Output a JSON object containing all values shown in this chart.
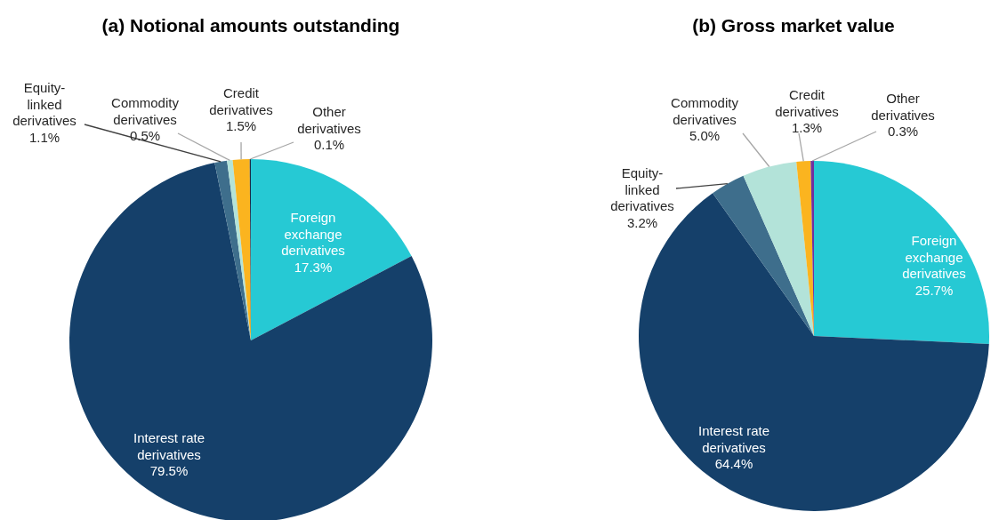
{
  "chart_data": [
    {
      "type": "pie",
      "title": "(a)  Notional amounts outstanding",
      "categories": [
        "Foreign exchange derivatives",
        "Interest rate derivatives",
        "Equity-linked derivatives",
        "Commodity derivatives",
        "Credit derivatives",
        "Other derivatives"
      ],
      "values": [
        17.3,
        79.5,
        1.1,
        0.5,
        1.5,
        0.1
      ],
      "colors": [
        "#26c9d4",
        "#15406a",
        "#3e6e8c",
        "#b3e3d9",
        "#fbb41f",
        "#1f2a44"
      ],
      "value_labels": [
        "17.3%",
        "79.5%",
        "1.1%",
        "0.5%",
        "1.5%",
        "0.1%"
      ]
    },
    {
      "type": "pie",
      "title": "(b)  Gross market value",
      "categories": [
        "Foreign exchange derivatives",
        "Interest rate derivatives",
        "Equity-linked derivatives",
        "Commodity derivatives",
        "Credit derivatives",
        "Other derivatives"
      ],
      "values": [
        25.7,
        64.4,
        3.2,
        5.0,
        1.3,
        0.3
      ],
      "colors": [
        "#26c9d4",
        "#15406a",
        "#3e6e8c",
        "#b3e3d9",
        "#fbb41f",
        "#7030a0"
      ],
      "value_labels": [
        "25.7%",
        "64.4%",
        "3.2%",
        "5.0%",
        "1.3%",
        "0.3%"
      ]
    }
  ]
}
